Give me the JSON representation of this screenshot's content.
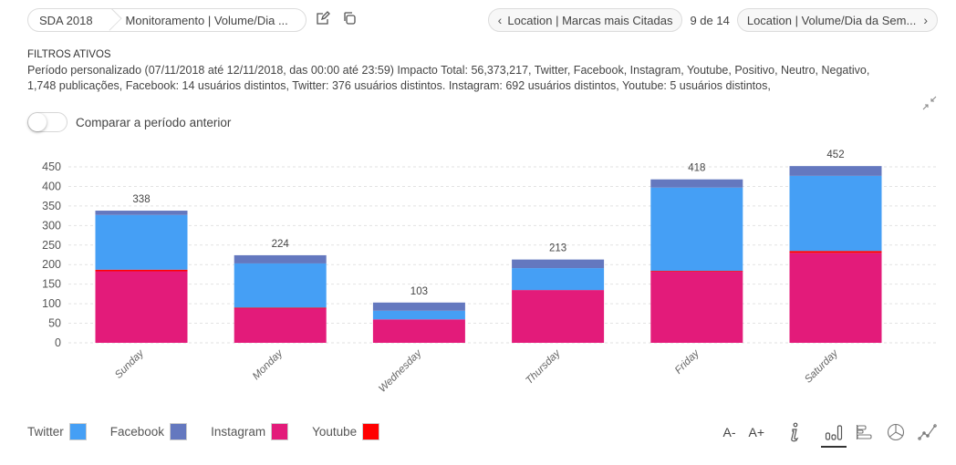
{
  "breadcrumb": {
    "root": "SDA 2018",
    "current": "Monitoramento | Volume/Dia ..."
  },
  "toolbar": {
    "edit_icon": "edit-icon",
    "copy_icon": "copy-icon"
  },
  "navigation": {
    "prev_label": "Location | Marcas mais Citadas",
    "counter": "9 de 14",
    "next_label": "Location | Volume/Dia da Sem...",
    "prev_icon": "chevron-left-icon",
    "next_icon": "chevron-right-icon"
  },
  "filters": {
    "title": "FILTROS ATIVOS",
    "line1": "Período personalizado (07/11/2018 até 12/11/2018, das 00:00 até 23:59) Impacto Total: 56,373,217, Twitter, Facebook, Instagram, Youtube, Positivo, Neutro, Negativo,",
    "line2": "1,748 publicações, Facebook: 14 usuários distintos, Twitter: 376 usuários distintos. Instagram: 692 usuários distintos, Youtube: 5 usuários distintos,"
  },
  "compare": {
    "label": "Comparar a período anterior",
    "enabled": false
  },
  "legend": [
    {
      "name": "Twitter",
      "color": "#459ff5"
    },
    {
      "name": "Facebook",
      "color": "#6478bf"
    },
    {
      "name": "Instagram",
      "color": "#e31b7a"
    },
    {
      "name": "Youtube",
      "color": "#ff0000"
    }
  ],
  "tools": {
    "font_decrease": "A-",
    "font_increase": "A+",
    "info_icon": "info-icon",
    "bar_chart_icon": "bar-chart-icon",
    "horizontal_bar_icon": "horizontal-bar-chart-icon",
    "pie_chart_icon": "pie-chart-icon",
    "line_chart_icon": "line-chart-icon",
    "active": "bar-chart"
  },
  "chart_data": {
    "type": "bar",
    "stacked": true,
    "title": "",
    "xlabel": "",
    "ylabel": "",
    "ylim": [
      0,
      450
    ],
    "yticks": [
      0,
      50,
      100,
      150,
      200,
      250,
      300,
      350,
      400,
      450
    ],
    "grid": true,
    "legend_position": "bottom-left",
    "categories": [
      "Sunday",
      "Monday",
      "Wednesday",
      "Thursday",
      "Friday",
      "Saturday"
    ],
    "totals": [
      338,
      224,
      103,
      213,
      418,
      452
    ],
    "series": [
      {
        "name": "Instagram",
        "color": "#e31b7a",
        "values": [
          183,
          89,
          60,
          135,
          183,
          230
        ]
      },
      {
        "name": "Youtube",
        "color": "#ff0000",
        "values": [
          4,
          1,
          0,
          0,
          1,
          5
        ]
      },
      {
        "name": "Twitter",
        "color": "#459ff5",
        "values": [
          140,
          113,
          22,
          56,
          213,
          192
        ]
      },
      {
        "name": "Facebook",
        "color": "#6478bf",
        "values": [
          11,
          21,
          21,
          22,
          21,
          25
        ]
      }
    ]
  }
}
